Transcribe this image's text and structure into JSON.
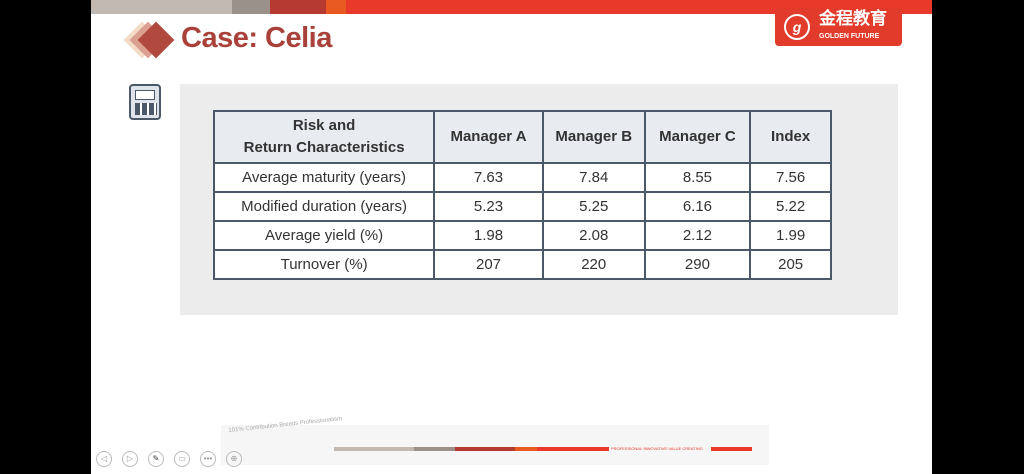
{
  "title": "Case: Celia",
  "logo": {
    "cn": "金程教育",
    "en": "GOLDEN FUTURE"
  },
  "colors": {
    "accent": "#a9413a",
    "brand_red": "#e23a2b",
    "border": "#4a5868"
  },
  "table": {
    "headers": [
      "Risk and\nReturn Characteristics",
      "Manager A",
      "Manager B",
      "Manager C",
      "Index"
    ],
    "header_lines": [
      "Risk and",
      "Return Characteristics"
    ],
    "rows": [
      [
        "Average maturity (years)",
        "7.63",
        "7.84",
        "8.55",
        "7.56"
      ],
      [
        "Modified duration (years)",
        "5.23",
        "5.25",
        "6.16",
        "5.22"
      ],
      [
        "Average yield (%)",
        "1.98",
        "2.08",
        "2.12",
        "1.99"
      ],
      [
        "Turnover (%)",
        "207",
        "220",
        "290",
        "205"
      ]
    ]
  },
  "footer": {
    "slogan": "101% Contribution Breeds Professionalism",
    "tagline": "PROFESSIONAL·INNOVATIVE·VALUE CREATING"
  },
  "controls": [
    "previous-icon",
    "next-icon",
    "pen-icon",
    "slide-icon",
    "more-icon",
    "zoom-icon"
  ]
}
